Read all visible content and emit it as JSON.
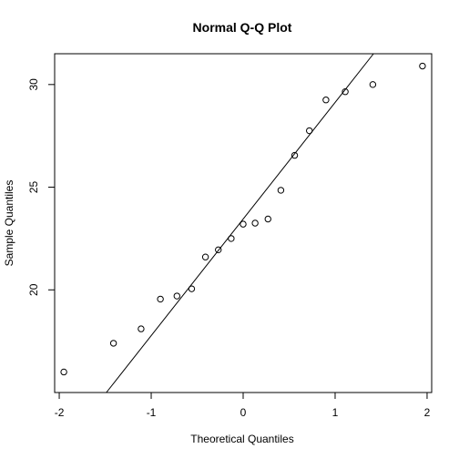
{
  "chart_data": {
    "type": "scatter",
    "title": "Normal Q-Q Plot",
    "xlabel": "Theoretical Quantiles",
    "ylabel": "Sample Quantiles",
    "xlim": [
      -2.05,
      2.05
    ],
    "ylim": [
      15.0,
      31.5
    ],
    "x_ticks": [
      -2,
      -1,
      0,
      1,
      2
    ],
    "x_tick_labels": [
      "-2",
      "-1",
      "0",
      "1",
      "2"
    ],
    "y_ticks": [
      20,
      25,
      30
    ],
    "y_tick_labels": [
      "20",
      "25",
      "30"
    ],
    "grid": false,
    "marker": "open-circle",
    "points": [
      {
        "x": -1.95,
        "y": 16.0
      },
      {
        "x": -1.41,
        "y": 17.4
      },
      {
        "x": -1.11,
        "y": 18.1
      },
      {
        "x": -0.9,
        "y": 19.55
      },
      {
        "x": -0.72,
        "y": 19.7
      },
      {
        "x": -0.56,
        "y": 20.05
      },
      {
        "x": -0.41,
        "y": 21.6
      },
      {
        "x": -0.27,
        "y": 21.95
      },
      {
        "x": -0.13,
        "y": 22.5
      },
      {
        "x": 0.0,
        "y": 23.2
      },
      {
        "x": 0.13,
        "y": 23.25
      },
      {
        "x": 0.27,
        "y": 23.45
      },
      {
        "x": 0.41,
        "y": 24.85
      },
      {
        "x": 0.56,
        "y": 26.55
      },
      {
        "x": 0.72,
        "y": 27.75
      },
      {
        "x": 0.9,
        "y": 29.25
      },
      {
        "x": 1.11,
        "y": 29.65
      },
      {
        "x": 1.41,
        "y": 30.0
      },
      {
        "x": 1.95,
        "y": 30.9
      }
    ],
    "reference_line": {
      "intercept": 23.45,
      "slope": 5.68
    },
    "colors": {
      "points": "#000000",
      "line": "#000000",
      "axes": "#000000"
    }
  }
}
